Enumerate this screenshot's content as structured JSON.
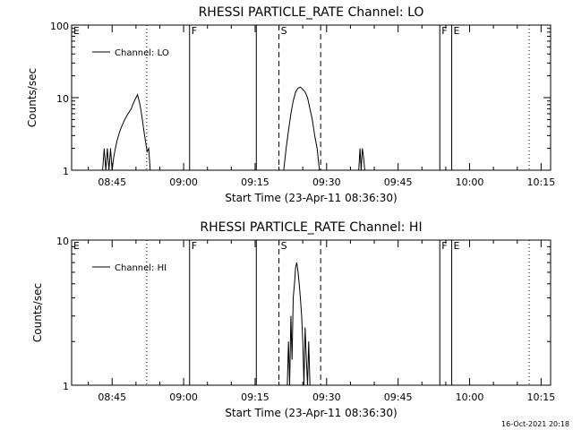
{
  "footer": {
    "timestamp": "16-Oct-2021 20:18"
  },
  "chart_data": [
    {
      "type": "line",
      "title": "RHESSI PARTICLE_RATE Channel: LO",
      "xlabel": "Start Time (23-Apr-11 08:36:30)",
      "ylabel": "Counts/sec",
      "yscale": "log",
      "xlim": [
        "08:36:30",
        "10:17:00"
      ],
      "ylim": [
        1,
        100
      ],
      "x_ticks": [
        "08:45",
        "09:00",
        "09:15",
        "09:30",
        "09:45",
        "10:00",
        "10:15"
      ],
      "y_ticks": [
        "1",
        "10",
        "100"
      ],
      "legend": {
        "placement": "top-left",
        "entries": [
          "Channel: LO"
        ]
      },
      "grid": false,
      "event_markers": [
        {
          "label": "E",
          "time": "08:36:30",
          "style": "solid"
        },
        {
          "label": "",
          "time": "08:52:15",
          "style": "dotted"
        },
        {
          "label": "F",
          "time": "09:01:15",
          "style": "solid"
        },
        {
          "label": "",
          "time": "09:15:15",
          "style": "solid"
        },
        {
          "label": "S",
          "time": "09:20:00",
          "style": "dashed"
        },
        {
          "label": "",
          "time": "09:28:45",
          "style": "dashed"
        },
        {
          "label": "F",
          "time": "09:53:45",
          "style": "solid"
        },
        {
          "label": "E",
          "time": "09:56:15",
          "style": "solid"
        },
        {
          "label": "",
          "time": "10:12:30",
          "style": "dotted"
        }
      ],
      "series": [
        {
          "name": "Channel: LO",
          "x": [
            "08:43:00",
            "08:43:20",
            "08:43:40",
            "08:44:00",
            "08:44:20",
            "08:44:40",
            "08:45:00",
            "08:45:20",
            "08:45:40",
            "08:46:00",
            "08:46:20",
            "08:46:40",
            "08:47:00",
            "08:47:20",
            "08:47:40",
            "08:48:00",
            "08:48:20",
            "08:48:40",
            "08:49:00",
            "08:49:20",
            "08:49:40",
            "08:50:00",
            "08:50:20",
            "08:50:40",
            "08:51:00",
            "08:51:20",
            "08:51:40",
            "08:52:00",
            "08:52:20",
            "08:52:40",
            "08:53:00",
            "09:21:00",
            "09:21:30",
            "09:22:00",
            "09:22:30",
            "09:23:00",
            "09:23:30",
            "09:24:00",
            "09:24:30",
            "09:25:00",
            "09:25:30",
            "09:26:00",
            "09:26:30",
            "09:27:00",
            "09:27:30",
            "09:28:00",
            "09:28:30",
            "09:36:45",
            "09:37:00",
            "09:37:15",
            "09:37:30",
            "09:37:45",
            "09:38:00"
          ],
          "values": [
            1,
            2,
            1,
            2,
            1,
            2,
            1,
            1.5,
            2,
            2.5,
            3,
            3.5,
            4,
            4.5,
            5,
            5.5,
            6,
            6.5,
            7,
            8,
            9,
            10,
            11,
            9,
            7,
            5,
            3.5,
            2.5,
            1.8,
            2,
            1,
            1,
            2,
            3.5,
            6,
            9,
            12,
            13.5,
            14,
            13,
            12,
            10,
            7,
            5,
            3,
            2,
            1,
            1,
            2,
            1,
            2,
            1.5,
            1
          ]
        }
      ]
    },
    {
      "type": "line",
      "title": "RHESSI PARTICLE_RATE Channel: HI",
      "xlabel": "Start Time (23-Apr-11 08:36:30)",
      "ylabel": "Counts/sec",
      "yscale": "log",
      "xlim": [
        "08:36:30",
        "10:17:00"
      ],
      "ylim": [
        1,
        10
      ],
      "x_ticks": [
        "08:45",
        "09:00",
        "09:15",
        "09:30",
        "09:45",
        "10:00",
        "10:15"
      ],
      "y_ticks": [
        "1",
        "10"
      ],
      "legend": {
        "placement": "top-left",
        "entries": [
          "Channel: HI"
        ]
      },
      "grid": false,
      "event_markers": [
        {
          "label": "E",
          "time": "08:36:30",
          "style": "solid"
        },
        {
          "label": "",
          "time": "08:52:15",
          "style": "dotted"
        },
        {
          "label": "F",
          "time": "09:01:15",
          "style": "solid"
        },
        {
          "label": "",
          "time": "09:15:15",
          "style": "solid"
        },
        {
          "label": "S",
          "time": "09:20:00",
          "style": "dashed"
        },
        {
          "label": "",
          "time": "09:28:45",
          "style": "dashed"
        },
        {
          "label": "F",
          "time": "09:53:45",
          "style": "solid"
        },
        {
          "label": "E",
          "time": "09:56:15",
          "style": "solid"
        },
        {
          "label": "",
          "time": "10:12:30",
          "style": "dotted"
        }
      ],
      "series": [
        {
          "name": "Channel: HI",
          "x": [
            "09:21:45",
            "09:22:00",
            "09:22:15",
            "09:22:30",
            "09:22:45",
            "09:23:00",
            "09:23:15",
            "09:23:30",
            "09:23:45",
            "09:24:00",
            "09:24:15",
            "09:24:30",
            "09:24:45",
            "09:25:00",
            "09:25:15",
            "09:25:30",
            "09:25:45",
            "09:26:00",
            "09:26:15",
            "09:26:30"
          ],
          "values": [
            1,
            2,
            1,
            3,
            1.5,
            4,
            5,
            6.5,
            7,
            6,
            5,
            4,
            3,
            2,
            1,
            2.5,
            1.5,
            1,
            2,
            1
          ]
        }
      ]
    }
  ]
}
